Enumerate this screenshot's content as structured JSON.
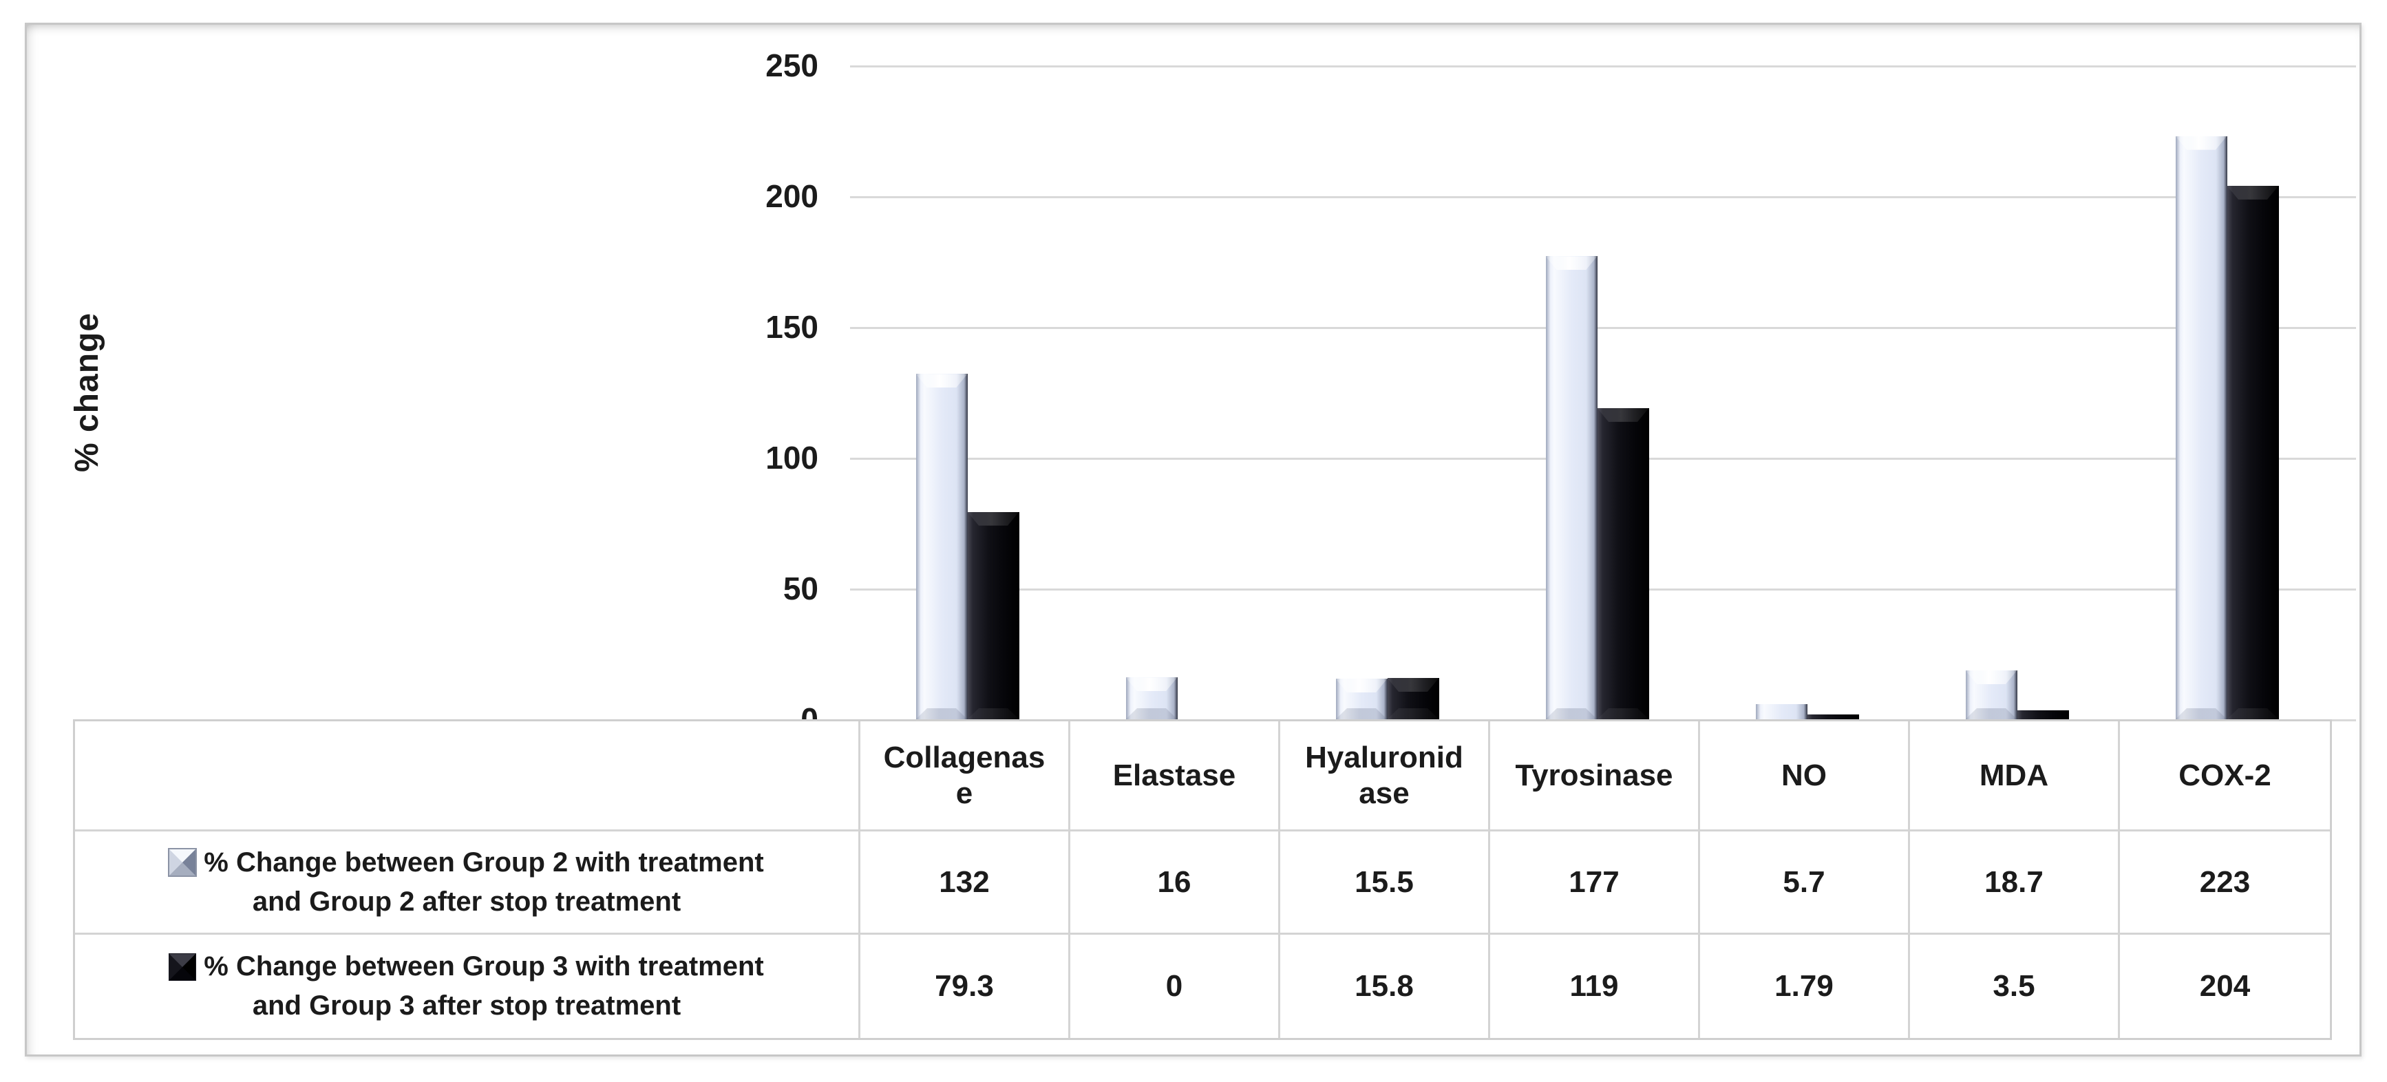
{
  "figure": {
    "y_axis": {
      "title": "% change",
      "tick_labels": [
        "0",
        "50",
        "100",
        "150",
        "200",
        "250"
      ],
      "min": 0,
      "max": 250,
      "step": 50
    }
  },
  "chart_data": {
    "type": "bar",
    "title": "",
    "xlabel": "",
    "ylabel": "% change",
    "ylim": [
      0,
      250
    ],
    "grid": "horizontal",
    "gridline_values": [
      0,
      50,
      100,
      150,
      200,
      250
    ],
    "legend_position": "data-table-left-column",
    "categories": [
      "Collagenase",
      "Elastase",
      "Hyaluronidase",
      "Tyrosinase",
      "NO",
      "MDA",
      "COX-2"
    ],
    "series": [
      {
        "name": "% Change between Group 2 with treatment and Group 2 after stop treatment",
        "legend_lines": [
          "% Change between Group 2 with treatment",
          "and Group 2 after stop treatment"
        ],
        "values": [
          132,
          16,
          15.5,
          177,
          5.7,
          18.7,
          223
        ],
        "color": "#e4eaf8",
        "style": "beveled-3d-light"
      },
      {
        "name": "% Change between Group 3 with treatment and Group 3 after stop treatment",
        "legend_lines": [
          "% Change between Group 3 with treatment",
          "and Group 3 after stop treatment"
        ],
        "values": [
          79.3,
          0,
          15.8,
          119,
          1.79,
          3.5,
          204
        ],
        "color": "#0b0b10",
        "style": "beveled-3d-black"
      }
    ]
  },
  "data_table": {
    "header_lines": [
      [
        "Collagenas",
        "e"
      ],
      [
        "Elastase"
      ],
      [
        "Hyaluronid",
        "ase"
      ],
      [
        "Tyrosinase"
      ],
      [
        "NO"
      ],
      [
        "MDA"
      ],
      [
        "COX-2"
      ]
    ],
    "rows": [
      {
        "legend_lines": [
          "% Change between Group 2 with treatment",
          "and Group 2 after stop treatment"
        ],
        "swatch": "light-beveled-square-icon",
        "values": [
          "132",
          "16",
          "15.5",
          "177",
          "5.7",
          "18.7",
          "223"
        ]
      },
      {
        "legend_lines": [
          "% Change between Group 3 with treatment",
          "and Group 3 after stop treatment"
        ],
        "swatch": "black-beveled-square-icon",
        "values": [
          "79.3",
          "0",
          "15.8",
          "119",
          "1.79",
          "3.5",
          "204"
        ]
      }
    ]
  },
  "colors": {
    "gridline": "#d9d9d9",
    "figure_border": "#c7c7c7",
    "table_border": "#d4d4d4",
    "series1_fill": "#e4eaf8",
    "series2_fill": "#0b0b10",
    "text": "#1b1b1b",
    "background": "#ffffff"
  }
}
